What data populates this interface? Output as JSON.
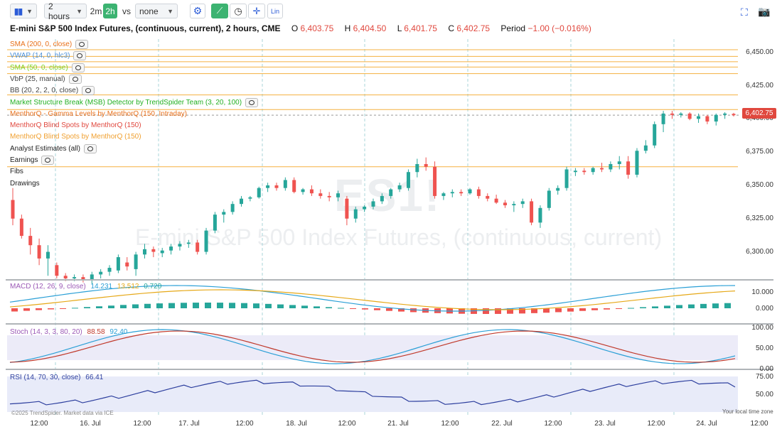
{
  "toolbar": {
    "interval": "2 hours",
    "quick_interval": "2m",
    "active_interval": "2h",
    "vs_label": "vs",
    "compare": "none",
    "lin_label": "Lin"
  },
  "header": {
    "title": "E-mini S&P 500 Index Futures, (continuous, current), 2 hours, CME",
    "open_label": "O",
    "open": "6,403.75",
    "high_label": "H",
    "high": "6,404.50",
    "low_label": "L",
    "low": "6,401.75",
    "close_label": "C",
    "close": "6,402.75",
    "period_label": "Period",
    "period": "−1.00 (−0.016%)"
  },
  "legend": [
    {
      "label": "SMA (200, 0, close)",
      "color": "#e8701a"
    },
    {
      "label": "VWAP (14, 0, hlc3)",
      "color": "#4a90d9"
    },
    {
      "label": "SMA (50, 0, close)",
      "color": "#7ed321"
    },
    {
      "label": "VbP (25, manual)",
      "color": "#444444"
    },
    {
      "label": "BB (20, 2, 2, 0, close)",
      "color": "#444444"
    },
    {
      "label": "Market Structure Break (MSB) Detector by TrendSpider Team (3, 20, 100)",
      "color": "#22b022"
    },
    {
      "label": "MenthorQ - Gamma Levels by MenthorQ (150, Intraday)",
      "color": "#e8701a"
    },
    {
      "label": "MenthorQ Blind Spots by MenthorQ (150)",
      "color": "#e0483e"
    },
    {
      "label": "MenthorQ Blind Spots by MenthorQ (150)",
      "color": "#f0a030"
    },
    {
      "label": "Analyst Estimates (all)",
      "color": "#222222"
    },
    {
      "label": "Earnings",
      "color": "#222222"
    },
    {
      "label": "Fibs",
      "color": "#222222"
    },
    {
      "label": "Drawings",
      "color": "#222222"
    }
  ],
  "watermark": {
    "symbol": "ES1!",
    "name": "E-mini S&P 500 Index Futures, (continuous, current)"
  },
  "price_axis": [
    "6,450.00",
    "6,425.00",
    "6,400.00",
    "6,375.00",
    "6,350.00",
    "6,325.00",
    "6,300.00"
  ],
  "last_price": "6,402.75",
  "macd": {
    "label": "MACD (12, 26, 9, close)",
    "v1": "14.231",
    "v2": "13.512",
    "v3": "0.720",
    "ticks": [
      "10.000",
      "0.000"
    ]
  },
  "stoch": {
    "label": "Stoch (14, 3, 3, 80, 20)",
    "v1": "88.58",
    "v2": "92.40",
    "ticks": [
      "100.00",
      "50.00",
      "0.00"
    ]
  },
  "rsi": {
    "label": "RSI (14, 70, 30, close)",
    "v1": "66.41",
    "ticks": [
      "75.00",
      "50.00"
    ]
  },
  "time_axis": [
    "12:00",
    "16. Jul",
    "12:00",
    "17. Jul",
    "12:00",
    "18. Jul",
    "12:00",
    "21. Jul",
    "12:00",
    "22. Jul",
    "12:00",
    "23. Jul",
    "12:00",
    "24. Jul",
    "12:00"
  ],
  "footer": {
    "credit": "©2025 TrendSpider. Market data via ICE",
    "timezone": "Your local time zone"
  },
  "colors": {
    "up": "#26a69a",
    "down": "#ef5350",
    "accent": "#3cb371",
    "level": "#f5b041"
  },
  "chart_data": {
    "type": "candlestick",
    "title": "E-mini S&P 500 Index Futures, (continuous, current), 2 hours, CME",
    "ylim": [
      6280,
      6460
    ],
    "horizontal_levels": [
      6452,
      6447,
      6443,
      6439,
      6434,
      6418,
      6407,
      6364
    ],
    "candles": [
      [
        6339,
        6348,
        6320,
        6325
      ],
      [
        6325,
        6328,
        6310,
        6312
      ],
      [
        6312,
        6318,
        6298,
        6305
      ],
      [
        6305,
        6310,
        6290,
        6295
      ],
      [
        6295,
        6305,
        6282,
        6300
      ],
      [
        6290,
        6292,
        6280,
        6282
      ],
      [
        6282,
        6284,
        6278,
        6280
      ],
      [
        6280,
        6283,
        6278,
        6281
      ],
      [
        6281,
        6283,
        6277,
        6279
      ],
      [
        6279,
        6285,
        6276,
        6283
      ],
      [
        6283,
        6287,
        6280,
        6285
      ],
      [
        6285,
        6290,
        6282,
        6288
      ],
      [
        6286,
        6298,
        6284,
        6296
      ],
      [
        6292,
        6296,
        6286,
        6289
      ],
      [
        6287,
        6300,
        6282,
        6298
      ],
      [
        6298,
        6306,
        6295,
        6302
      ],
      [
        6302,
        6304,
        6296,
        6300
      ],
      [
        6299,
        6303,
        6296,
        6301
      ],
      [
        6301,
        6306,
        6298,
        6304
      ],
      [
        6304,
        6308,
        6301,
        6306
      ],
      [
        6306,
        6309,
        6303,
        6307
      ],
      [
        6307,
        6309,
        6298,
        6300
      ],
      [
        6300,
        6318,
        6298,
        6316
      ],
      [
        6316,
        6330,
        6314,
        6328
      ],
      [
        6328,
        6332,
        6322,
        6330
      ],
      [
        6330,
        6338,
        6328,
        6336
      ],
      [
        6336,
        6342,
        6334,
        6340
      ],
      [
        6340,
        6342,
        6338,
        6341
      ],
      [
        6341,
        6349,
        6340,
        6348
      ],
      [
        6348,
        6352,
        6345,
        6350
      ],
      [
        6350,
        6352,
        6346,
        6348
      ],
      [
        6348,
        6356,
        6346,
        6354
      ],
      [
        6354,
        6356,
        6344,
        6345
      ],
      [
        6345,
        6348,
        6343,
        6347
      ],
      [
        6347,
        6350,
        6342,
        6344
      ],
      [
        6344,
        6347,
        6340,
        6342
      ],
      [
        6342,
        6345,
        6338,
        6341
      ],
      [
        6341,
        6346,
        6338,
        6344
      ],
      [
        6340,
        6342,
        6320,
        6325
      ],
      [
        6325,
        6334,
        6322,
        6332
      ],
      [
        6332,
        6335,
        6330,
        6334
      ],
      [
        6334,
        6340,
        6332,
        6338
      ],
      [
        6338,
        6344,
        6336,
        6342
      ],
      [
        6342,
        6348,
        6340,
        6347
      ],
      [
        6347,
        6352,
        6345,
        6350
      ],
      [
        6348,
        6362,
        6346,
        6360
      ],
      [
        6360,
        6370,
        6356,
        6366
      ],
      [
        6366,
        6371,
        6361,
        6364
      ],
      [
        6364,
        6368,
        6340,
        6342
      ],
      [
        6342,
        6345,
        6339,
        6344
      ],
      [
        6344,
        6347,
        6341,
        6345
      ],
      [
        6345,
        6347,
        6342,
        6344
      ],
      [
        6344,
        6348,
        6343,
        6347
      ],
      [
        6347,
        6349,
        6340,
        6342
      ],
      [
        6342,
        6344,
        6338,
        6340
      ],
      [
        6340,
        6343,
        6336,
        6337
      ],
      [
        6337,
        6339,
        6333,
        6335
      ],
      [
        6335,
        6338,
        6330,
        6336
      ],
      [
        6336,
        6340,
        6333,
        6338
      ],
      [
        6338,
        6340,
        6320,
        6322
      ],
      [
        6322,
        6335,
        6318,
        6333
      ],
      [
        6333,
        6348,
        6331,
        6346
      ],
      [
        6346,
        6350,
        6343,
        6348
      ],
      [
        6348,
        6364,
        6346,
        6362
      ],
      [
        6360,
        6363,
        6357,
        6361
      ],
      [
        6361,
        6363,
        6358,
        6360
      ],
      [
        6360,
        6364,
        6358,
        6363
      ],
      [
        6363,
        6367,
        6360,
        6362
      ],
      [
        6362,
        6368,
        6360,
        6366
      ],
      [
        6366,
        6372,
        6362,
        6368
      ],
      [
        6368,
        6372,
        6355,
        6358
      ],
      [
        6358,
        6378,
        6356,
        6376
      ],
      [
        6376,
        6384,
        6374,
        6380
      ],
      [
        6380,
        6398,
        6378,
        6396
      ],
      [
        6396,
        6406,
        6390,
        6404
      ],
      [
        6404,
        6406,
        6400,
        6403
      ],
      [
        6403,
        6405,
        6401,
        6404
      ],
      [
        6404,
        6405,
        6399,
        6400
      ],
      [
        6400,
        6404,
        6397,
        6402
      ],
      [
        6402,
        6403,
        6396,
        6398
      ],
      [
        6398,
        6404,
        6395,
        6403
      ],
      [
        6403,
        6405,
        6400,
        6404
      ],
      [
        6403.75,
        6404.5,
        6401.75,
        6402.75
      ]
    ],
    "macd_ticks": [
      10,
      0
    ],
    "stoch_ticks": [
      100,
      50,
      0
    ],
    "rsi_ticks": [
      75,
      50
    ]
  }
}
